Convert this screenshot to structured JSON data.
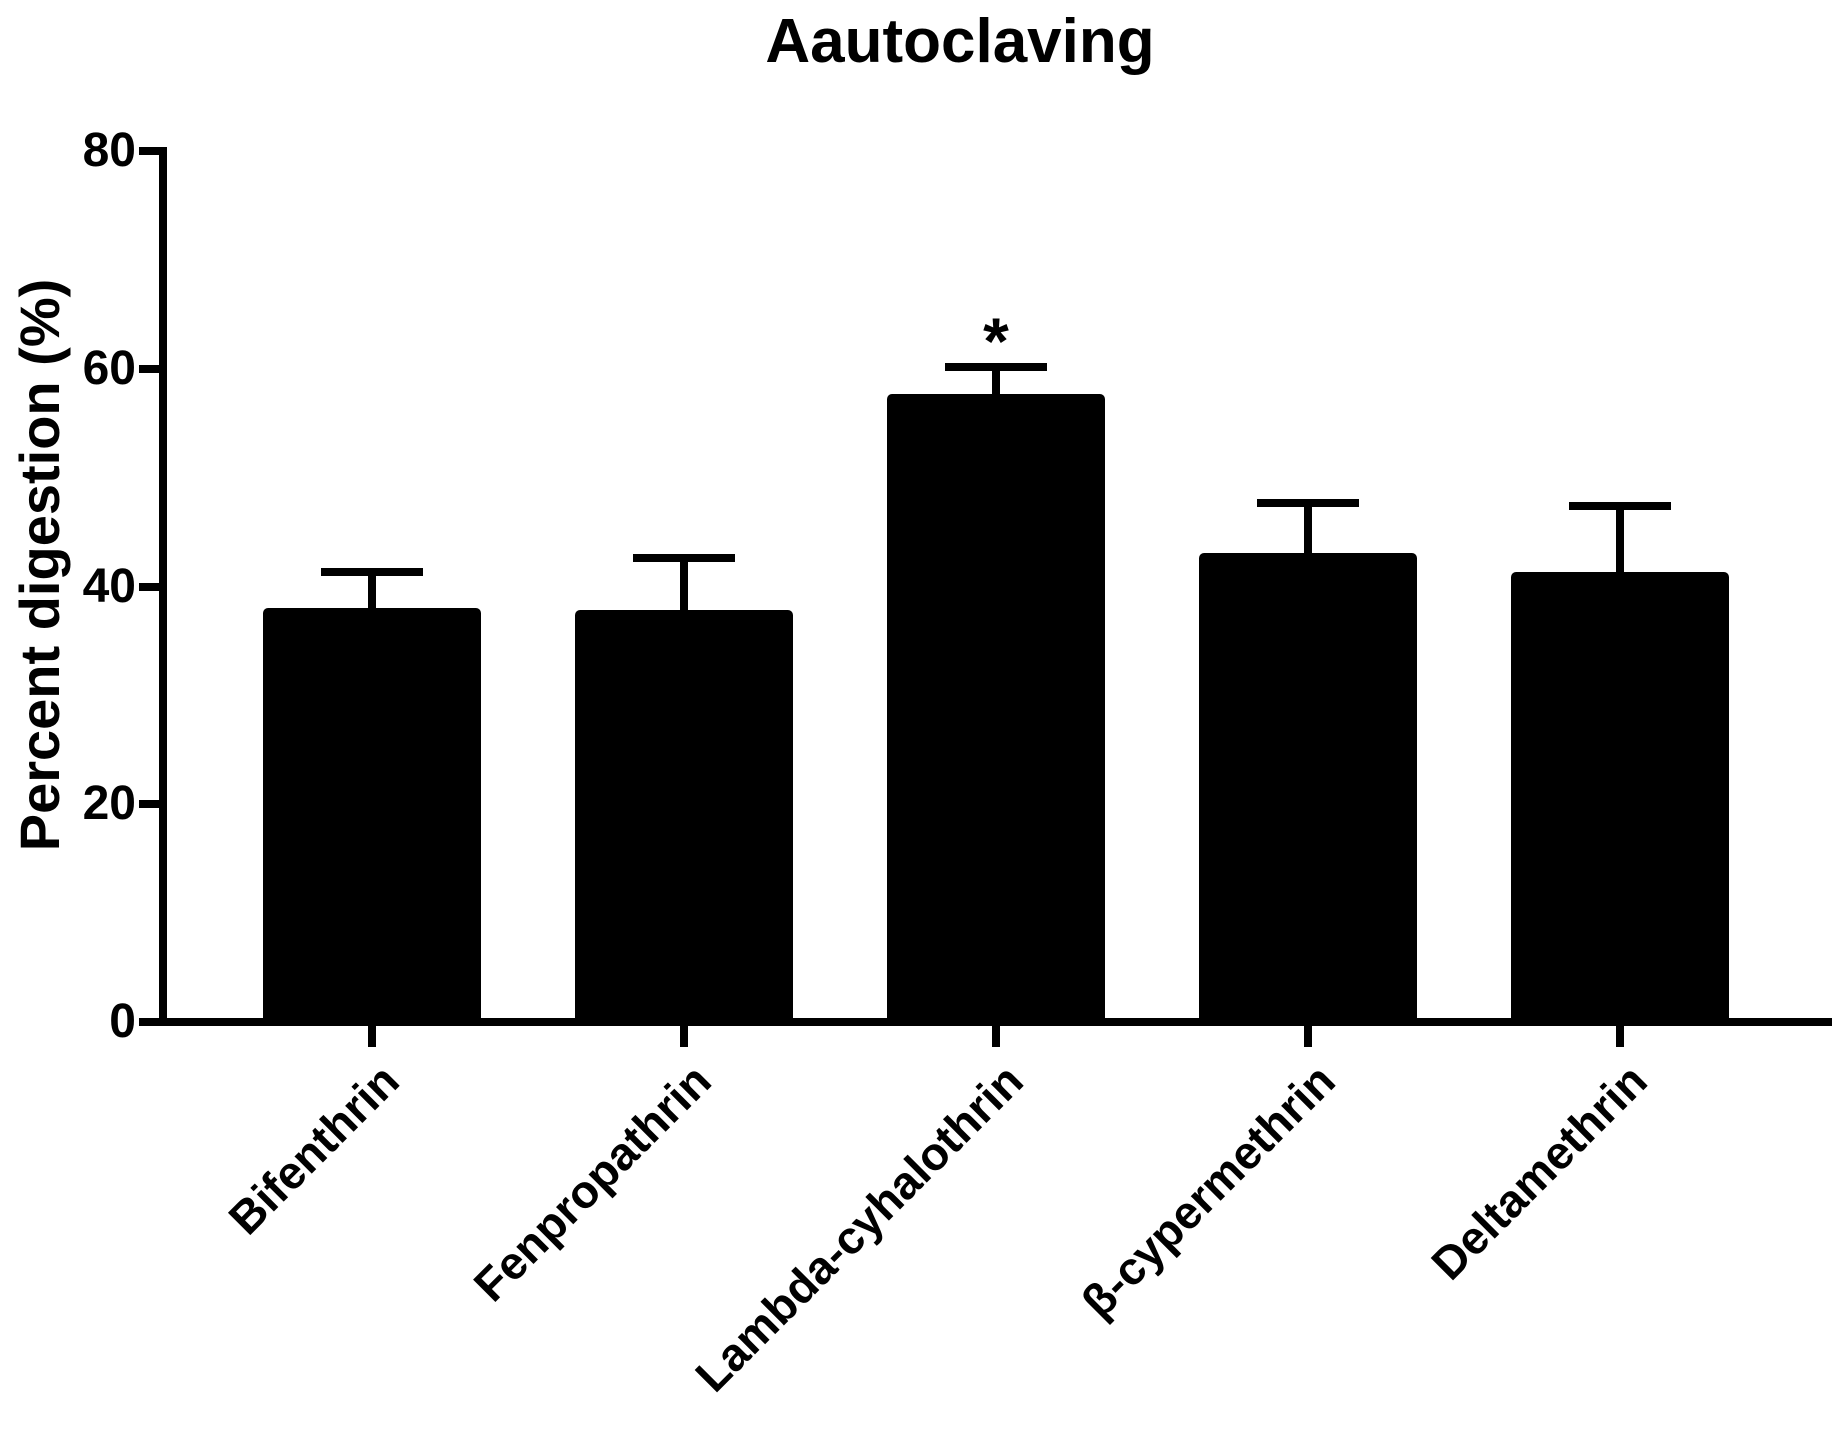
{
  "chart_data": {
    "type": "bar",
    "title": "Aautoclaving",
    "xlabel": "",
    "ylabel": "Percent digestion (%)",
    "ylim": [
      0,
      80
    ],
    "yticks": [
      0,
      20,
      40,
      60,
      80
    ],
    "categories": [
      "Bifenthrin",
      "Fenpropathrin",
      "Lambda-cyhalothrin",
      "β-cypermethrin",
      "Deltamethrin"
    ],
    "values": [
      38.0,
      37.8,
      57.7,
      43.1,
      41.3
    ],
    "errors_plus": [
      3.3,
      4.8,
      2.5,
      4.6,
      6.1
    ],
    "annotations": [
      {
        "category": "Lambda-cyhalothrin",
        "text": "*"
      }
    ],
    "bar_color": "#000000",
    "axis_color": "#000000",
    "background": "#ffffff",
    "grid": false,
    "legend": null
  }
}
